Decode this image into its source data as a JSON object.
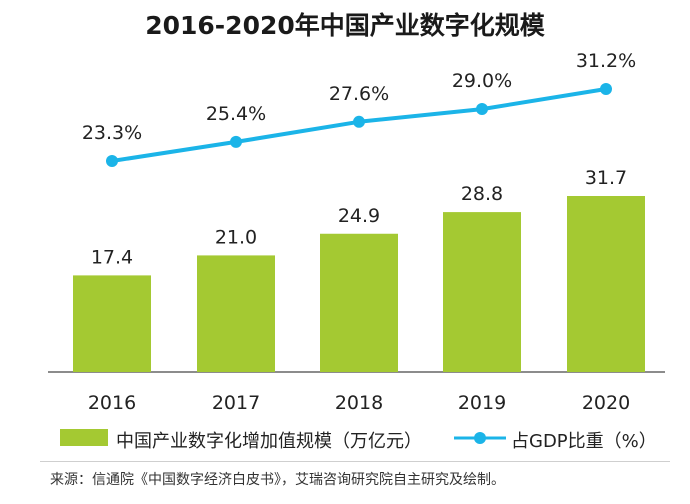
{
  "title": "2016-2020年中国产业数字化规模",
  "chart_data": {
    "type": "bar",
    "categories": [
      "2016",
      "2017",
      "2018",
      "2019",
      "2020"
    ],
    "series": [
      {
        "name": "中国产业数字化增加值规模（万亿元）",
        "kind": "bar",
        "values": [
          17.4,
          21.0,
          24.9,
          28.8,
          31.7
        ],
        "labels": [
          "17.4",
          "21.0",
          "24.9",
          "28.8",
          "31.7"
        ],
        "color": "#a4c932"
      },
      {
        "name": "占GDP比重（%）",
        "kind": "line",
        "values": [
          23.3,
          25.4,
          27.6,
          29.0,
          31.2
        ],
        "labels": [
          "23.3%",
          "25.4%",
          "27.6%",
          "29.0%",
          "31.2%"
        ],
        "color": "#1bb4e8"
      }
    ],
    "ylim": [
      0,
      34
    ],
    "y2lim": [
      7,
      34
    ],
    "xlabel": "",
    "ylabel": "",
    "legend": "bottom"
  },
  "source": "来源：信通院《中国数字经济白皮书》，艾瑞咨询研究院自主研究及绘制。"
}
